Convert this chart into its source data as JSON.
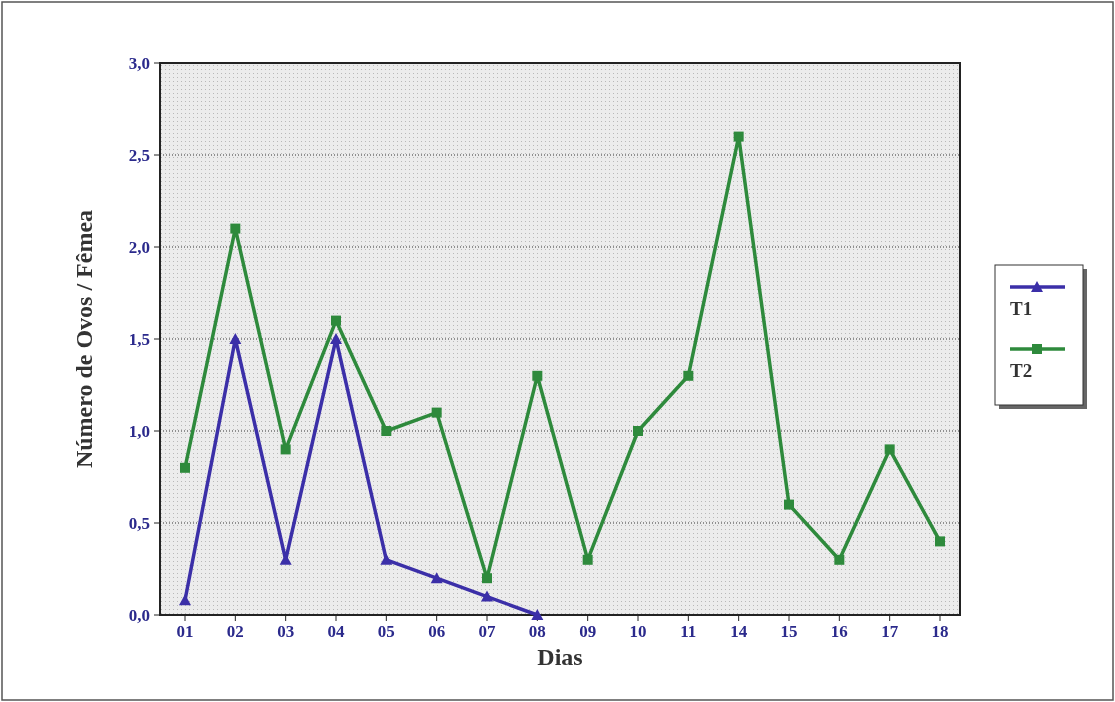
{
  "chart_data": {
    "type": "line",
    "xlabel": "Dias",
    "ylabel": "Número de Ovos / Fêmea",
    "categories": [
      "01",
      "02",
      "03",
      "04",
      "05",
      "06",
      "07",
      "08",
      "09",
      "10",
      "11",
      "14",
      "15",
      "16",
      "17",
      "18"
    ],
    "series": [
      {
        "name": "T1",
        "color": "#3b2fa8",
        "marker": "triangle",
        "values": [
          0.08,
          1.5,
          0.3,
          1.5,
          0.3,
          0.2,
          0.1,
          0.0,
          null,
          null,
          null,
          null,
          null,
          null,
          null,
          null
        ]
      },
      {
        "name": "T2",
        "color": "#2e8a3c",
        "marker": "square",
        "values": [
          0.8,
          2.1,
          0.9,
          1.6,
          1.0,
          1.1,
          0.2,
          1.3,
          0.3,
          1.0,
          1.3,
          2.6,
          0.6,
          0.3,
          0.9,
          0.4
        ]
      }
    ],
    "ylim": [
      0,
      3
    ],
    "yticks": [
      {
        "value": 0,
        "label": "0,0"
      },
      {
        "value": 0.5,
        "label": "0,5"
      },
      {
        "value": 1,
        "label": "1,0"
      },
      {
        "value": 1.5,
        "label": "1,5"
      },
      {
        "value": 2,
        "label": "2,0"
      },
      {
        "value": 2.5,
        "label": "2,5"
      },
      {
        "value": 3,
        "label": "3,0"
      }
    ],
    "grid": "y",
    "legend": "right",
    "line_style": "solid"
  }
}
